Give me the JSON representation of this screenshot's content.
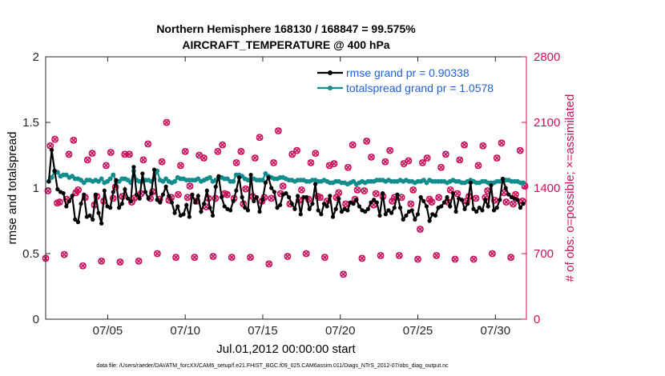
{
  "chart_data": {
    "type": "line",
    "title": "Northern Hemisphere 168130 / 168847 = 99.575%",
    "subtitle": "AIRCRAFT_TEMPERATURE @ 400 hPa",
    "xlabel": "Jul.01,2012 00:00:00 start",
    "ylabel_left": "rmse and totalspread",
    "ylabel_right": "# of obs: o=possible; ×=assimilated",
    "xlim": [
      1,
      32
    ],
    "ylim_left": [
      0,
      2
    ],
    "ylim_right": [
      0,
      2800
    ],
    "xticks": [
      5,
      10,
      15,
      20,
      25,
      30
    ],
    "xtick_labels": [
      "07/05",
      "07/10",
      "07/15",
      "07/20",
      "07/25",
      "07/30"
    ],
    "yticks_left": [
      0,
      0.5,
      1,
      1.5,
      2
    ],
    "ytick_labels_left": [
      "0",
      "0.5",
      "1",
      "1.5",
      "2"
    ],
    "yticks_right": [
      0,
      700,
      1400,
      2100,
      2800
    ],
    "ytick_labels_right": [
      "0",
      "700",
      "1400",
      "2100",
      "2800"
    ],
    "legend": [
      "rmse grand pr = 0.90338",
      "totalspread grand pr = 1.0578"
    ],
    "legend_position": "top-right",
    "footer": "data file: /Users/raeder/DAI/ATM_forcXX/CAM6_setup/f.e21.FHIST_BGC.f09_025.CAM6assim.011/Diags_NTrS_2012-07/obs_diag_output.nc",
    "colors": {
      "rmse": "#000000",
      "spread": "#138c8c",
      "obs": "#cc0f5a",
      "legend_text": "#1f5fd6"
    },
    "rmse": [
      1.05,
      1.29,
      1.13,
      0.99,
      0.97,
      0.96,
      0.86,
      0.9,
      0.94,
      0.76,
      0.74,
      0.88,
      0.95,
      0.78,
      0.79,
      0.76,
      0.95,
      0.81,
      0.73,
      0.98,
      0.86,
      0.85,
      0.97,
      1.06,
      0.85,
      0.88,
      0.99,
      0.92,
      0.9,
      1.16,
      0.95,
      0.92,
      1.11,
      0.97,
      0.92,
      0.96,
      1.14,
      0.91,
      0.89,
      0.95,
      1.01,
      0.94,
      0.89,
      0.81,
      0.86,
      0.79,
      0.8,
      0.87,
      0.78,
      0.95,
      0.89,
      0.94,
      0.82,
      0.88,
      0.98,
      0.85,
      0.79,
      1.01,
      1.09,
      0.93,
      0.86,
      0.84,
      0.83,
      0.9,
      0.98,
      1.08,
      0.93,
      0.85,
      0.83,
      1.1,
      0.9,
      0.93,
      0.82,
      0.91,
      1.04,
      1.08,
      1.0,
      0.97,
      0.85,
      0.87,
      0.95,
      0.96,
      0.93,
      0.88,
      0.84,
      0.94,
      0.8,
      0.93,
      0.93,
      0.84,
      0.88,
      1.03,
      0.83,
      0.8,
      0.88,
      0.86,
      0.94,
      0.78,
      0.84,
      0.92,
      0.82,
      0.84,
      0.83,
      0.89,
      0.88,
      0.91,
      0.86,
      0.83,
      0.82,
      0.84,
      0.89,
      0.91,
      0.89,
      0.79,
      0.96,
      0.8,
      0.83,
      0.81,
      0.85,
      0.95,
      0.85,
      0.76,
      0.79,
      0.82,
      0.83,
      0.76,
      0.8,
      0.93,
      0.9,
      0.86,
      0.75,
      0.8,
      0.79,
      0.85,
      0.86,
      0.89,
      0.93,
      0.86,
      0.96,
      0.82,
      0.92,
      0.91,
      0.84,
      0.88,
      1.04,
      0.84,
      0.82,
      0.85,
      0.83,
      0.91,
      0.86,
      1.02,
      0.83,
      0.85,
      0.91,
      1.07,
      1.0,
      0.95,
      0.93,
      0.92,
      0.91,
      0.85,
      0.88
    ],
    "spread": [
      1.05,
      1.08,
      1.13,
      1.12,
      1.09,
      1.1,
      1.1,
      1.08,
      1.09,
      1.07,
      1.07,
      1.06,
      1.04,
      1.06,
      1.06,
      1.05,
      1.06,
      1.05,
      1.07,
      1.04,
      1.05,
      1.07,
      1.1,
      1.05,
      1.05,
      1.07,
      1.07,
      1.06,
      1.04,
      1.13,
      1.06,
      1.05,
      1.05,
      1.06,
      1.06,
      1.05,
      1.07,
      1.13,
      1.06,
      1.05,
      1.07,
      1.05,
      1.04,
      1.05,
      1.08,
      1.07,
      1.07,
      1.06,
      1.06,
      1.06,
      1.06,
      1.07,
      1.05,
      1.06,
      1.07,
      1.08,
      1.05,
      1.06,
      1.08,
      1.08,
      1.07,
      1.07,
      1.05,
      1.05,
      1.1,
      1.1,
      1.09,
      1.07,
      1.06,
      1.07,
      1.07,
      1.06,
      1.06,
      1.06,
      1.11,
      1.09,
      1.08,
      1.07,
      1.07,
      1.08,
      1.08,
      1.07,
      1.06,
      1.06,
      1.05,
      1.06,
      1.06,
      1.06,
      1.05,
      1.05,
      1.06,
      1.06,
      1.05,
      1.05,
      1.06,
      1.05,
      1.04,
      1.04,
      1.05,
      1.05,
      1.04,
      1.04,
      1.03,
      1.04,
      1.05,
      1.03,
      1.04,
      1.05,
      1.04,
      1.05,
      1.05,
      1.05,
      1.06,
      1.06,
      1.06,
      1.05,
      1.06,
      1.05,
      1.05,
      1.05,
      1.06,
      1.05,
      1.06,
      1.05,
      1.05,
      1.04,
      1.05,
      1.05,
      1.06,
      1.04,
      1.06,
      1.05,
      1.05,
      1.05,
      1.05,
      1.05,
      1.04,
      1.05,
      1.06,
      1.05,
      1.05,
      1.04,
      1.04,
      1.05,
      1.06,
      1.05,
      1.04,
      1.04,
      1.05,
      1.05,
      1.04,
      1.04,
      1.04,
      1.05,
      1.05,
      1.06,
      1.06,
      1.06,
      1.05,
      1.05,
      1.05,
      1.04,
      1.04
    ],
    "obs_x": [
      1.0,
      1.6,
      2.2,
      2.8,
      3.4,
      4.0,
      4.6,
      5.2,
      5.8,
      6.4,
      7.0,
      7.6,
      8.2,
      8.8,
      9.4,
      10.0,
      10.6,
      11.2,
      11.8,
      12.4,
      13.0,
      13.6,
      14.2,
      14.8,
      15.4,
      16.0,
      16.6,
      17.2,
      17.8,
      18.4,
      19.0,
      19.6,
      20.2,
      20.8,
      21.4,
      22.0,
      22.6,
      23.2,
      23.8,
      24.4,
      25.0,
      25.6,
      26.2,
      26.8,
      27.4,
      28.0,
      28.6,
      29.2,
      29.8,
      30.4,
      31.0,
      31.6,
      1.3,
      1.9,
      2.5,
      3.1,
      3.7,
      4.3,
      4.9,
      5.5,
      6.1,
      6.7,
      7.3,
      7.9,
      8.5,
      9.1,
      9.7,
      10.3,
      10.9,
      11.5,
      12.1,
      12.7,
      13.3,
      13.9,
      14.5,
      15.1,
      15.7,
      16.3,
      16.9,
      17.5,
      18.1,
      18.7,
      19.3,
      19.9,
      20.5,
      21.1,
      21.7,
      22.3,
      22.9,
      23.5,
      24.1,
      24.7,
      25.3,
      25.9,
      26.5,
      27.1,
      27.7,
      28.3,
      28.9,
      29.5,
      30.1,
      30.7,
      31.3,
      31.9,
      1.15,
      1.75,
      2.35,
      2.95,
      3.55,
      4.15,
      4.75,
      5.35,
      5.95,
      6.55,
      7.15,
      7.75,
      8.35,
      8.95,
      9.55,
      10.15,
      10.75,
      11.35,
      11.95,
      12.55,
      13.15,
      13.75,
      14.35,
      14.95,
      15.55,
      16.15,
      16.75,
      17.35,
      17.95,
      18.55,
      19.15,
      19.75,
      20.35,
      20.95,
      21.55,
      22.15,
      22.75,
      23.35,
      23.95,
      24.55,
      25.15,
      25.75,
      26.35,
      26.95,
      27.55,
      28.15,
      28.75,
      29.35,
      29.95,
      30.55,
      31.15,
      31.75
    ],
    "obs_y": [
      650,
      1920,
      690,
      1910,
      570,
      1770,
      620,
      1780,
      610,
      1760,
      620,
      1870,
      700,
      2100,
      660,
      1790,
      660,
      1720,
      670,
      1860,
      660,
      1790,
      660,
      1940,
      590,
      2010,
      670,
      1800,
      700,
      1770,
      660,
      1660,
      480,
      1860,
      650,
      1730,
      680,
      1800,
      680,
      1690,
      640,
      1720,
      680,
      1760,
      640,
      1860,
      640,
      1850,
      700,
      1880,
      660,
      1800,
      1850,
      1250,
      1760,
      1380,
      1700,
      1310,
      1640,
      1410,
      1760,
      1290,
      1700,
      1360,
      1680,
      1300,
      1640,
      1420,
      1750,
      1290,
      1790,
      1330,
      1670,
      1390,
      1720,
      1300,
      1670,
      1420,
      1760,
      1380,
      1670,
      1300,
      1640,
      1350,
      1620,
      1380,
      1900,
      1340,
      1680,
      1300,
      1660,
      1380,
      1670,
      1250,
      1620,
      1380,
      1700,
      1310,
      1640,
      1370,
      1720,
      1250,
      1330,
      1420,
      1370,
      1240,
      1280,
      1350,
      1300,
      1220,
      1260,
      1290,
      1310,
      1250,
      1340,
      1290,
      1280,
      1270,
      1330,
      1300,
      1260,
      1200,
      1290,
      1340,
      1290,
      1230,
      1310,
      1260,
      1290,
      1340,
      1230,
      1270,
      1280,
      1310,
      1260,
      1300,
      1230,
      1280,
      1370,
      1220,
      1310,
      1260,
      1300,
      1230,
      960,
      1280,
      1300,
      1250,
      1340,
      1260,
      1290,
      1300,
      1270,
      1350,
      1230,
      1260
    ]
  }
}
